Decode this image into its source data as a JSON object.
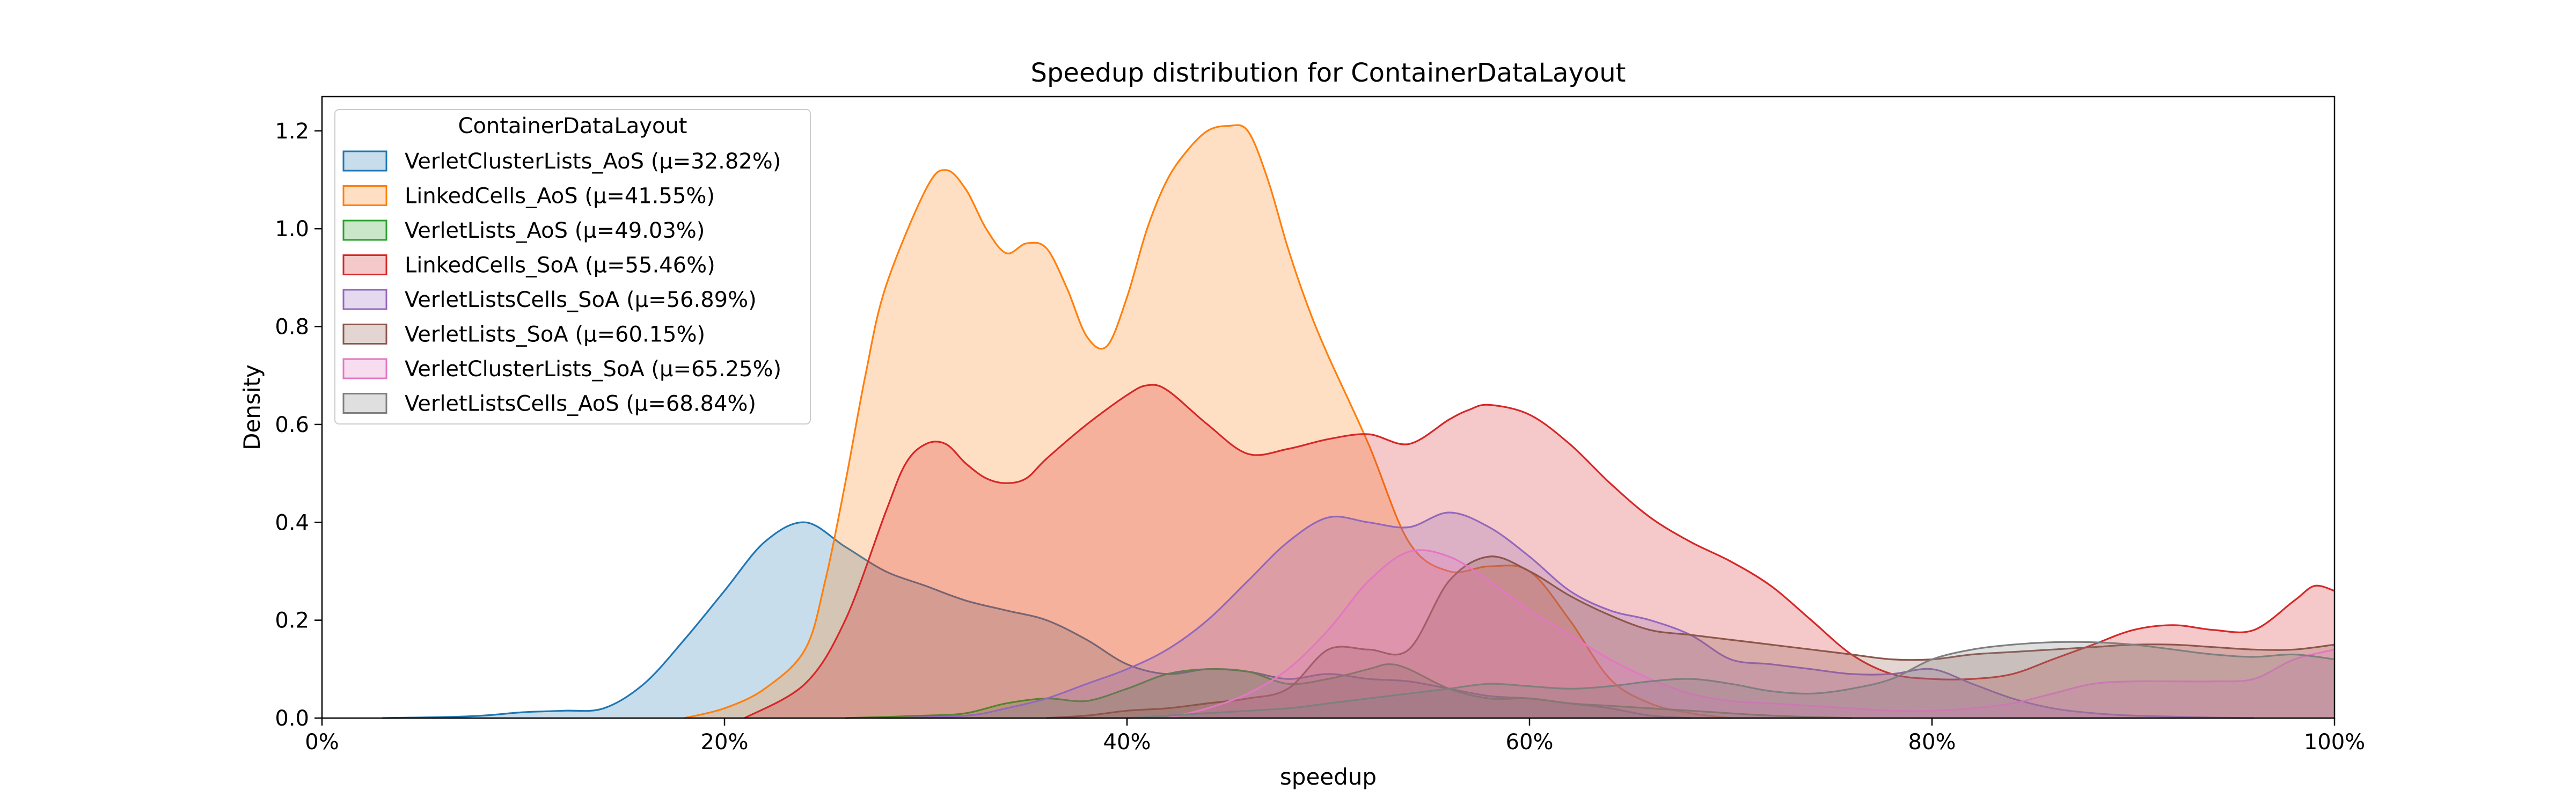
{
  "chart_data": {
    "type": "area",
    "title": "Speedup distribution for ContainerDataLayout",
    "xlabel": "speedup",
    "ylabel": "Density",
    "xlim": [
      0,
      100
    ],
    "ylim": [
      0,
      1.27
    ],
    "x_ticks": [
      0,
      20,
      40,
      60,
      80,
      100
    ],
    "x_tick_labels": [
      "0%",
      "20%",
      "40%",
      "60%",
      "80%",
      "100%"
    ],
    "y_ticks": [
      0.0,
      0.2,
      0.4,
      0.6,
      0.8,
      1.0,
      1.2
    ],
    "y_tick_labels": [
      "0.0",
      "0.2",
      "0.4",
      "0.6",
      "0.8",
      "1.0",
      "1.2"
    ],
    "grid": false,
    "legend": {
      "title": "ContainerDataLayout",
      "placement": "top-left"
    },
    "series": [
      {
        "name": "VerletClusterLists_AoS (μ=32.82%)",
        "color": "#1f77b4",
        "x": [
          3,
          6,
          8,
          10,
          12,
          14,
          16,
          18,
          20,
          22,
          24,
          26,
          28,
          30,
          32,
          34,
          36,
          38,
          40,
          42,
          44,
          46,
          48,
          50,
          52,
          54,
          56,
          58,
          60,
          62,
          64,
          66,
          68
        ],
        "y": [
          0.0,
          0.002,
          0.005,
          0.012,
          0.015,
          0.02,
          0.07,
          0.16,
          0.26,
          0.36,
          0.4,
          0.35,
          0.3,
          0.27,
          0.24,
          0.22,
          0.2,
          0.16,
          0.11,
          0.09,
          0.1,
          0.095,
          0.08,
          0.09,
          0.08,
          0.075,
          0.06,
          0.045,
          0.04,
          0.03,
          0.02,
          0.005,
          0.0
        ]
      },
      {
        "name": "LinkedCells_AoS (μ=41.55%)",
        "color": "#ff7f0e",
        "x": [
          18,
          20,
          22,
          24,
          25,
          26,
          27,
          28,
          30,
          31,
          32,
          33,
          34,
          35,
          36,
          37,
          38,
          39,
          40,
          41,
          42,
          43,
          44,
          45,
          46,
          47,
          48,
          49,
          50,
          52,
          54,
          56,
          58,
          60,
          62,
          64,
          66,
          68,
          70
        ],
        "y": [
          0.0,
          0.02,
          0.06,
          0.14,
          0.28,
          0.48,
          0.7,
          0.88,
          1.08,
          1.12,
          1.08,
          1.0,
          0.95,
          0.97,
          0.96,
          0.88,
          0.78,
          0.76,
          0.86,
          1.0,
          1.1,
          1.16,
          1.2,
          1.21,
          1.2,
          1.1,
          0.96,
          0.84,
          0.74,
          0.56,
          0.36,
          0.3,
          0.31,
          0.3,
          0.2,
          0.08,
          0.03,
          0.01,
          0.0
        ]
      },
      {
        "name": "VerletLists_AoS (μ=49.03%)",
        "color": "#2ca02c",
        "x": [
          26,
          30,
          32,
          34,
          36,
          38,
          40,
          42,
          44,
          46,
          48,
          50,
          52,
          53,
          54,
          56,
          58,
          60,
          62,
          64,
          66,
          68,
          72,
          76
        ],
        "y": [
          0.0,
          0.005,
          0.01,
          0.03,
          0.04,
          0.035,
          0.06,
          0.09,
          0.1,
          0.095,
          0.07,
          0.08,
          0.1,
          0.11,
          0.1,
          0.06,
          0.04,
          0.04,
          0.03,
          0.025,
          0.02,
          0.015,
          0.005,
          0.0
        ]
      },
      {
        "name": "LinkedCells_SoA (μ=55.46%)",
        "color": "#d62728",
        "x": [
          21,
          24,
          26,
          28,
          29,
          30,
          31,
          32,
          33,
          34,
          35,
          36,
          38,
          40,
          41,
          42,
          44,
          46,
          48,
          50,
          52,
          54,
          56,
          57,
          58,
          60,
          62,
          64,
          66,
          68,
          70,
          72,
          74,
          76,
          78,
          80,
          82,
          84,
          86,
          88,
          90,
          92,
          94,
          96,
          98,
          99,
          100
        ],
        "y": [
          0.0,
          0.07,
          0.2,
          0.42,
          0.52,
          0.56,
          0.56,
          0.52,
          0.49,
          0.48,
          0.49,
          0.53,
          0.6,
          0.66,
          0.68,
          0.67,
          0.6,
          0.54,
          0.55,
          0.57,
          0.58,
          0.56,
          0.61,
          0.63,
          0.64,
          0.62,
          0.56,
          0.48,
          0.41,
          0.36,
          0.32,
          0.27,
          0.2,
          0.13,
          0.09,
          0.08,
          0.08,
          0.09,
          0.12,
          0.15,
          0.18,
          0.19,
          0.18,
          0.18,
          0.24,
          0.27,
          0.26
        ]
      },
      {
        "name": "VerletListsCells_SoA (μ=56.89%)",
        "color": "#9467bd",
        "x": [
          28,
          32,
          34,
          36,
          38,
          40,
          42,
          44,
          46,
          48,
          50,
          52,
          54,
          56,
          58,
          60,
          62,
          64,
          66,
          68,
          70,
          72,
          74,
          76,
          78,
          80,
          82,
          84,
          86,
          88,
          90,
          92,
          94,
          96
        ],
        "y": [
          0.0,
          0.005,
          0.02,
          0.04,
          0.07,
          0.1,
          0.14,
          0.2,
          0.28,
          0.36,
          0.41,
          0.4,
          0.39,
          0.42,
          0.39,
          0.33,
          0.26,
          0.22,
          0.2,
          0.17,
          0.12,
          0.11,
          0.1,
          0.09,
          0.09,
          0.1,
          0.07,
          0.04,
          0.02,
          0.01,
          0.005,
          0.003,
          0.001,
          0.0
        ]
      },
      {
        "name": "VerletLists_SoA (μ=60.15%)",
        "color": "#8c564b",
        "x": [
          36,
          38,
          40,
          42,
          44,
          46,
          48,
          50,
          52,
          54,
          56,
          58,
          60,
          62,
          64,
          66,
          68,
          70,
          72,
          74,
          76,
          78,
          80,
          82,
          84,
          86,
          88,
          90,
          92,
          94,
          96,
          98,
          100
        ],
        "y": [
          0.0,
          0.005,
          0.015,
          0.02,
          0.03,
          0.04,
          0.06,
          0.14,
          0.14,
          0.14,
          0.28,
          0.33,
          0.3,
          0.25,
          0.21,
          0.18,
          0.17,
          0.16,
          0.15,
          0.14,
          0.13,
          0.12,
          0.12,
          0.13,
          0.135,
          0.14,
          0.145,
          0.15,
          0.15,
          0.145,
          0.14,
          0.14,
          0.15
        ]
      },
      {
        "name": "VerletClusterLists_SoA (μ=65.25%)",
        "color": "#e377c2",
        "x": [
          42,
          44,
          46,
          48,
          50,
          52,
          54,
          56,
          58,
          60,
          62,
          64,
          66,
          68,
          70,
          72,
          74,
          76,
          78,
          80,
          82,
          84,
          86,
          88,
          90,
          92,
          94,
          96,
          98,
          100
        ],
        "y": [
          0.0,
          0.02,
          0.05,
          0.1,
          0.18,
          0.28,
          0.34,
          0.33,
          0.28,
          0.22,
          0.17,
          0.12,
          0.08,
          0.05,
          0.035,
          0.03,
          0.025,
          0.02,
          0.015,
          0.015,
          0.02,
          0.03,
          0.05,
          0.07,
          0.075,
          0.075,
          0.075,
          0.08,
          0.12,
          0.14
        ]
      },
      {
        "name": "VerletListsCells_AoS (μ=68.84%)",
        "color": "#7f7f7f",
        "x": [
          40,
          44,
          48,
          50,
          52,
          54,
          56,
          58,
          60,
          62,
          64,
          66,
          68,
          70,
          72,
          74,
          76,
          78,
          80,
          82,
          84,
          86,
          88,
          90,
          92,
          94,
          96,
          98,
          100
        ],
        "y": [
          0.0,
          0.01,
          0.02,
          0.03,
          0.04,
          0.05,
          0.06,
          0.07,
          0.065,
          0.06,
          0.065,
          0.075,
          0.08,
          0.07,
          0.055,
          0.05,
          0.06,
          0.08,
          0.12,
          0.14,
          0.15,
          0.155,
          0.155,
          0.15,
          0.14,
          0.13,
          0.125,
          0.13,
          0.12
        ]
      }
    ]
  }
}
